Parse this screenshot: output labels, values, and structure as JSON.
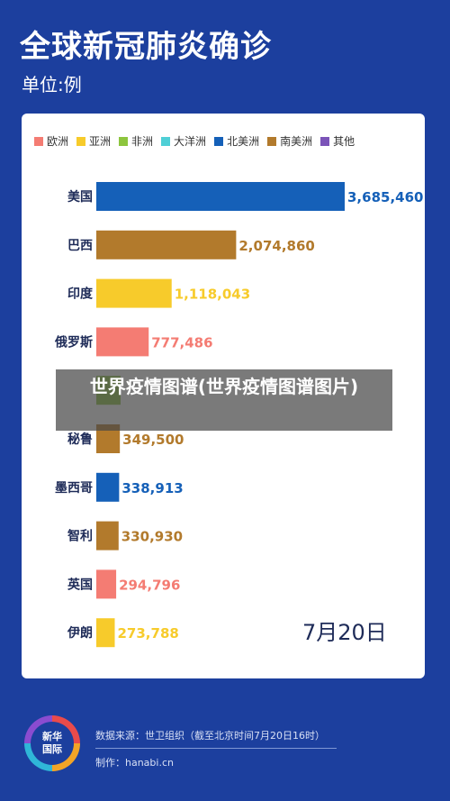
{
  "header": {
    "title": "全球新冠肺炎确诊",
    "unit": "单位:例"
  },
  "colors": {
    "background": "#1c3f9e",
    "europe": "#f47c73",
    "asia": "#f7cb2b",
    "africa": "#8dc53e",
    "oceania": "#4fcfd6",
    "north_america": "#1560b8",
    "south_america": "#b27a2c",
    "other": "#7b54b8"
  },
  "chart_data": {
    "type": "bar",
    "orientation": "horizontal",
    "legend": [
      {
        "name": "欧洲",
        "color": "#f47c73"
      },
      {
        "name": "亚洲",
        "color": "#f7cb2b"
      },
      {
        "name": "非洲",
        "color": "#8dc53e"
      },
      {
        "name": "大洋洲",
        "color": "#4fcfd6"
      },
      {
        "name": "北美洲",
        "color": "#1560b8"
      },
      {
        "name": "南美洲",
        "color": "#b27a2c"
      },
      {
        "name": "其他",
        "color": "#7b54b8"
      }
    ],
    "legend_position": "top",
    "bars": [
      {
        "category": "美国",
        "value": 3685460,
        "label": "3,685,460",
        "region": "北美洲",
        "color": "#1560b8"
      },
      {
        "category": "巴西",
        "value": 2074860,
        "label": "2,074,860",
        "region": "南美洲",
        "color": "#b27a2c"
      },
      {
        "category": "印度",
        "value": 1118043,
        "label": "1,118,043",
        "region": "亚洲",
        "color": "#f7cb2b"
      },
      {
        "category": "俄罗斯",
        "value": 777486,
        "label": "777,486",
        "region": "欧洲",
        "color": "#f47c73"
      },
      {
        "category": "",
        "value": 360000,
        "label": "",
        "region": "非洲",
        "color": "#8dc53e"
      },
      {
        "category": "秘鲁",
        "value": 349500,
        "label": "349,500",
        "region": "南美洲",
        "color": "#b27a2c"
      },
      {
        "category": "墨西哥",
        "value": 338913,
        "label": "338,913",
        "region": "北美洲",
        "color": "#1560b8"
      },
      {
        "category": "智利",
        "value": 330930,
        "label": "330,930",
        "region": "南美洲",
        "color": "#b27a2c"
      },
      {
        "category": "英国",
        "value": 294796,
        "label": "294,796",
        "region": "欧洲",
        "color": "#f47c73"
      },
      {
        "category": "伊朗",
        "value": 273788,
        "label": "273,788",
        "region": "亚洲",
        "color": "#f7cb2b"
      }
    ],
    "xlim": [
      0,
      3685460
    ],
    "grid": false
  },
  "date_label": "7月20日",
  "overlay": {
    "caption": "世界疫情图谱(世界疫情图谱图片)"
  },
  "footer": {
    "logo_line1": "新华",
    "logo_line2": "国际",
    "source": "数据来源：世卫组织（截至北京时间7月20日16时）",
    "maker": "制作：hanabi.cn"
  }
}
